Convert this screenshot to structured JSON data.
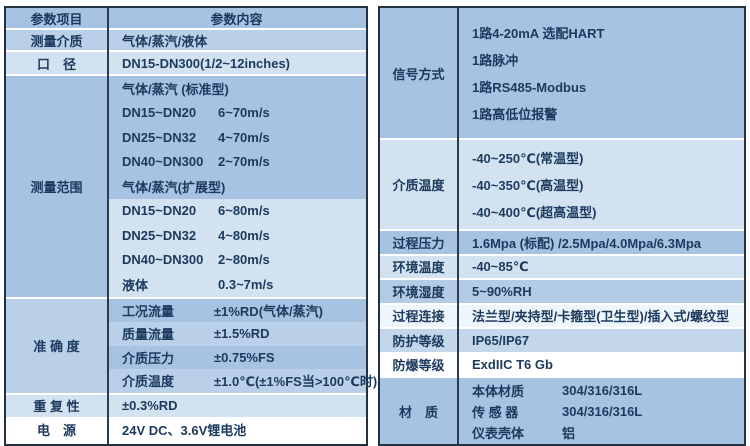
{
  "theme": {
    "border_dark": "#22303f",
    "divider_dark": "#2b3c50",
    "grid_line": "#ffffff",
    "text_color": "#1c3a5e",
    "row_blue_medium": "#a6c4e1",
    "row_blue_soft": "#b9d0e8",
    "row_blue_light": "#d3e2f0",
    "row_blue_faint": "#eef5fb",
    "row_white": "#ffffff"
  },
  "left_table": {
    "header": {
      "col1": "参数项目",
      "col2": "参数内容"
    },
    "measuring_medium": {
      "label": "测量介质",
      "value": "气体/蒸汽/液体"
    },
    "diameter": {
      "label": "口　径",
      "value": "DN15-DN300(1/2~12inches)"
    },
    "measuring_range": {
      "label": "测量范围",
      "standard_lines": [
        {
          "c1": "气体/蒸汽 (标准型)",
          "c2": ""
        },
        {
          "c1": "DN15~DN20",
          "c2": "6~70m/s"
        },
        {
          "c1": "DN25~DN32",
          "c2": "4~70m/s"
        },
        {
          "c1": "DN40~DN300",
          "c2": "2~70m/s"
        },
        {
          "c1": "气体/蒸汽(扩展型)",
          "c2": ""
        }
      ],
      "extended_lines": [
        {
          "c1": "DN15~DN20",
          "c2": "6~80m/s"
        },
        {
          "c1": "DN25~DN32",
          "c2": "4~80m/s"
        },
        {
          "c1": "DN40~DN300",
          "c2": "2~80m/s"
        },
        {
          "c1": "液体",
          "c2": "0.3~7m/s"
        }
      ]
    },
    "accuracy": {
      "label": "准 确 度",
      "lines": [
        {
          "c1": "工况流量",
          "c2": "±1%RD(气体/蒸汽)"
        },
        {
          "c1": "质量流量",
          "c2": "±1.5%RD"
        },
        {
          "c1": "介质压力",
          "c2": "±0.75%FS"
        },
        {
          "c1": "介质温度",
          "c2": "±1.0℃(±1%FS当>100℃时)"
        }
      ]
    },
    "repeatability": {
      "label": "重 复 性",
      "value": "±0.3%RD"
    },
    "power": {
      "label": "电　源",
      "value": "24V DC、3.6V锂电池"
    }
  },
  "right_table": {
    "signal": {
      "label": "信号方式",
      "lines": [
        "1路4-20mA 选配HART",
        "1路脉冲",
        "1路RS485-Modbus",
        "1路高低位报警"
      ]
    },
    "medium_temperature": {
      "label": "介质温度",
      "lines": [
        "-40~250℃(常温型)",
        "-40~350℃(高温型)",
        "-40~400℃(超高温型)"
      ]
    },
    "process_pressure": {
      "label": "过程压力",
      "value": "1.6Mpa (标配) /2.5Mpa/4.0Mpa/6.3Mpa"
    },
    "ambient_temperature": {
      "label": "环境温度",
      "value": "-40~85℃"
    },
    "ambient_humidity": {
      "label": "环境湿度",
      "value": "5~90%RH"
    },
    "process_connection": {
      "label": "过程连接",
      "value": "法兰型/夹持型/卡箍型(卫生型)/插入式/螺纹型"
    },
    "protection_rating": {
      "label": "防护等级",
      "value": "IP65/IP67"
    },
    "explosion_proof_rating": {
      "label": "防爆等级",
      "value": "ExdIIC T6 Gb"
    },
    "material": {
      "label": "材　质",
      "lines": [
        {
          "c1": "本体材质",
          "c2": "304/316/316L"
        },
        {
          "c1": "传 感 器",
          "c2": "304/316/316L"
        },
        {
          "c1": "仪表壳体",
          "c2": "铝"
        }
      ]
    }
  }
}
